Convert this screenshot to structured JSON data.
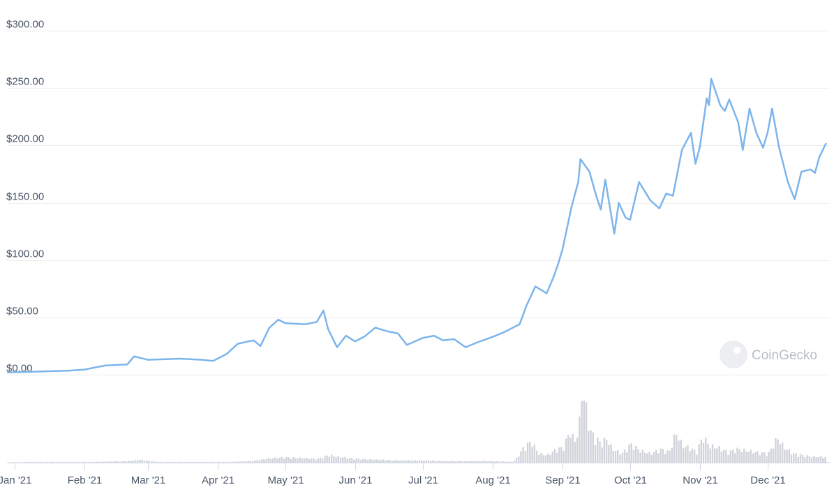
{
  "chart_data": {
    "type": "line",
    "title": "",
    "xlabel": "",
    "ylabel": "",
    "ylim": [
      0,
      300
    ],
    "grid": true,
    "legend": "none",
    "y_ticks": [
      "$0.00",
      "$50.00",
      "$100.00",
      "$150.00",
      "$200.00",
      "$250.00",
      "$300.00"
    ],
    "y_tick_values": [
      0,
      50,
      100,
      150,
      200,
      250,
      300
    ],
    "x_ticks": [
      "Jan '21",
      "Feb '21",
      "Mar '21",
      "Apr '21",
      "May '21",
      "Jun '21",
      "Jul '21",
      "Aug '21",
      "Sep '21",
      "Oct '21",
      "Nov '21",
      "Dec '21"
    ],
    "x_tick_dates": [
      "2021-01-01",
      "2021-02-01",
      "2021-03-01",
      "2021-04-01",
      "2021-05-01",
      "2021-06-01",
      "2021-07-01",
      "2021-08-01",
      "2021-09-01",
      "2021-10-01",
      "2021-11-01",
      "2021-12-01"
    ],
    "line_color": "#7cb5ec",
    "volume_color": "#d0d3da",
    "price_series": [
      [
        "2020-12-28",
        2
      ],
      [
        "2021-01-08",
        2.5
      ],
      [
        "2021-01-15",
        3
      ],
      [
        "2021-01-25",
        3.5
      ],
      [
        "2021-02-01",
        4.5
      ],
      [
        "2021-02-10",
        8
      ],
      [
        "2021-02-20",
        9
      ],
      [
        "2021-02-23",
        16
      ],
      [
        "2021-03-01",
        13
      ],
      [
        "2021-03-15",
        14
      ],
      [
        "2021-03-25",
        13
      ],
      [
        "2021-03-30",
        12
      ],
      [
        "2021-04-05",
        18
      ],
      [
        "2021-04-10",
        27
      ],
      [
        "2021-04-17",
        30
      ],
      [
        "2021-04-20",
        25
      ],
      [
        "2021-04-24",
        41
      ],
      [
        "2021-04-28",
        48
      ],
      [
        "2021-05-01",
        45
      ],
      [
        "2021-05-10",
        44
      ],
      [
        "2021-05-15",
        46
      ],
      [
        "2021-05-18",
        56
      ],
      [
        "2021-05-20",
        40
      ],
      [
        "2021-05-24",
        24
      ],
      [
        "2021-05-28",
        34
      ],
      [
        "2021-06-01",
        29
      ],
      [
        "2021-06-05",
        33
      ],
      [
        "2021-06-10",
        41
      ],
      [
        "2021-06-15",
        38
      ],
      [
        "2021-06-20",
        36
      ],
      [
        "2021-06-24",
        26
      ],
      [
        "2021-07-01",
        32
      ],
      [
        "2021-07-06",
        34
      ],
      [
        "2021-07-10",
        30
      ],
      [
        "2021-07-15",
        31
      ],
      [
        "2021-07-20",
        24
      ],
      [
        "2021-07-25",
        28
      ],
      [
        "2021-08-01",
        33
      ],
      [
        "2021-08-06",
        37
      ],
      [
        "2021-08-10",
        41
      ],
      [
        "2021-08-13",
        44
      ],
      [
        "2021-08-16",
        60
      ],
      [
        "2021-08-20",
        77
      ],
      [
        "2021-08-25",
        71
      ],
      [
        "2021-08-28",
        85
      ],
      [
        "2021-08-30",
        96
      ],
      [
        "2021-09-01",
        109
      ],
      [
        "2021-09-05",
        146
      ],
      [
        "2021-09-08",
        168
      ],
      [
        "2021-09-09",
        188
      ],
      [
        "2021-09-13",
        177
      ],
      [
        "2021-09-16",
        156
      ],
      [
        "2021-09-18",
        144
      ],
      [
        "2021-09-20",
        170
      ],
      [
        "2021-09-24",
        123
      ],
      [
        "2021-09-26",
        150
      ],
      [
        "2021-09-29",
        137
      ],
      [
        "2021-10-01",
        135
      ],
      [
        "2021-10-05",
        168
      ],
      [
        "2021-10-10",
        152
      ],
      [
        "2021-10-14",
        145
      ],
      [
        "2021-10-17",
        158
      ],
      [
        "2021-10-20",
        156
      ],
      [
        "2021-10-24",
        196
      ],
      [
        "2021-10-28",
        211
      ],
      [
        "2021-10-30",
        184
      ],
      [
        "2021-11-01",
        199
      ],
      [
        "2021-11-04",
        241
      ],
      [
        "2021-11-05",
        235
      ],
      [
        "2021-11-06",
        258
      ],
      [
        "2021-11-10",
        235
      ],
      [
        "2021-11-12",
        230
      ],
      [
        "2021-11-14",
        240
      ],
      [
        "2021-11-18",
        220
      ],
      [
        "2021-11-20",
        196
      ],
      [
        "2021-11-23",
        232
      ],
      [
        "2021-11-26",
        211
      ],
      [
        "2021-11-29",
        198
      ],
      [
        "2021-12-01",
        211
      ],
      [
        "2021-12-03",
        232
      ],
      [
        "2021-12-06",
        199
      ],
      [
        "2021-12-10",
        168
      ],
      [
        "2021-12-13",
        153
      ],
      [
        "2021-12-16",
        177
      ],
      [
        "2021-12-20",
        179
      ],
      [
        "2021-12-22",
        176
      ],
      [
        "2021-12-24",
        190
      ],
      [
        "2021-12-27",
        202
      ]
    ],
    "volume_series_relative": [
      [
        "2021-01-05",
        1
      ],
      [
        "2021-01-20",
        1
      ],
      [
        "2021-02-05",
        1
      ],
      [
        "2021-02-20",
        2
      ],
      [
        "2021-02-25",
        4
      ],
      [
        "2021-03-05",
        1
      ],
      [
        "2021-03-20",
        1
      ],
      [
        "2021-04-05",
        1
      ],
      [
        "2021-04-15",
        2
      ],
      [
        "2021-04-25",
        6
      ],
      [
        "2021-05-01",
        7
      ],
      [
        "2021-05-08",
        6
      ],
      [
        "2021-05-15",
        5
      ],
      [
        "2021-05-20",
        10
      ],
      [
        "2021-05-24",
        8
      ],
      [
        "2021-06-01",
        5
      ],
      [
        "2021-06-10",
        4
      ],
      [
        "2021-06-20",
        3
      ],
      [
        "2021-07-01",
        3
      ],
      [
        "2021-07-10",
        2
      ],
      [
        "2021-07-20",
        2
      ],
      [
        "2021-08-01",
        2
      ],
      [
        "2021-08-10",
        1
      ],
      [
        "2021-08-15",
        22
      ],
      [
        "2021-08-18",
        28
      ],
      [
        "2021-08-21",
        12
      ],
      [
        "2021-08-25",
        10
      ],
      [
        "2021-08-29",
        18
      ],
      [
        "2021-09-01",
        20
      ],
      [
        "2021-09-04",
        42
      ],
      [
        "2021-09-06",
        28
      ],
      [
        "2021-09-08",
        42
      ],
      [
        "2021-09-09",
        98
      ],
      [
        "2021-09-11",
        75
      ],
      [
        "2021-09-13",
        42
      ],
      [
        "2021-09-15",
        34
      ],
      [
        "2021-09-18",
        25
      ],
      [
        "2021-09-20",
        32
      ],
      [
        "2021-09-23",
        18
      ],
      [
        "2021-09-27",
        12
      ],
      [
        "2021-10-01",
        25
      ],
      [
        "2021-10-05",
        16
      ],
      [
        "2021-10-10",
        12
      ],
      [
        "2021-10-14",
        18
      ],
      [
        "2021-10-18",
        14
      ],
      [
        "2021-10-21",
        40
      ],
      [
        "2021-10-24",
        22
      ],
      [
        "2021-10-27",
        20
      ],
      [
        "2021-10-30",
        14
      ],
      [
        "2021-11-02",
        35
      ],
      [
        "2021-11-05",
        22
      ],
      [
        "2021-11-09",
        20
      ],
      [
        "2021-11-13",
        14
      ],
      [
        "2021-11-17",
        18
      ],
      [
        "2021-11-21",
        16
      ],
      [
        "2021-11-25",
        14
      ],
      [
        "2021-12-01",
        12
      ],
      [
        "2021-12-05",
        33
      ],
      [
        "2021-12-08",
        20
      ],
      [
        "2021-12-12",
        12
      ],
      [
        "2021-12-16",
        10
      ],
      [
        "2021-12-20",
        8
      ],
      [
        "2021-12-24",
        8
      ],
      [
        "2021-12-27",
        7
      ]
    ]
  },
  "watermark": {
    "text": "CoinGecko"
  }
}
